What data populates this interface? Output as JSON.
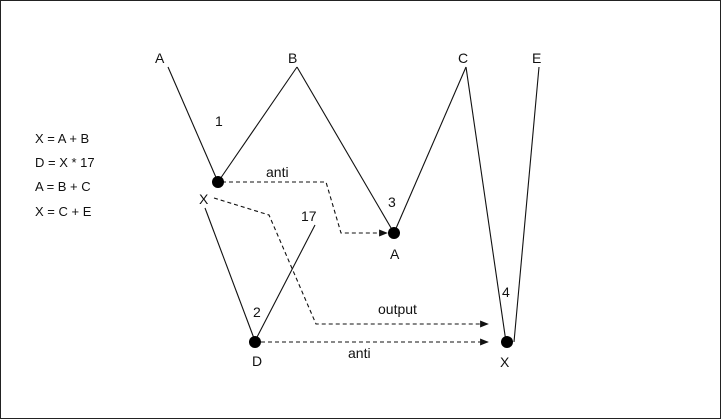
{
  "equations": [
    "X = A + B",
    "D = X * 17",
    "A = B + C",
    "X = C + E"
  ],
  "inputs": {
    "a": "A",
    "b": "B",
    "c": "C",
    "e": "E",
    "const": "17"
  },
  "nodes": [
    {
      "id": "n1",
      "step": "1",
      "label": "X"
    },
    {
      "id": "n2",
      "step": "2",
      "label": "D"
    },
    {
      "id": "n3",
      "step": "3",
      "label": "A"
    },
    {
      "id": "n4",
      "step": "4",
      "label": "X"
    }
  ],
  "dependencies": [
    {
      "from": "n1",
      "to": "n3",
      "type": "anti"
    },
    {
      "from": "n1",
      "to": "n4",
      "type": "output"
    },
    {
      "from": "n2",
      "to": "n4",
      "type": "anti"
    }
  ],
  "colors": {
    "line": "#111111",
    "node": "#000000",
    "border": "#222222"
  }
}
